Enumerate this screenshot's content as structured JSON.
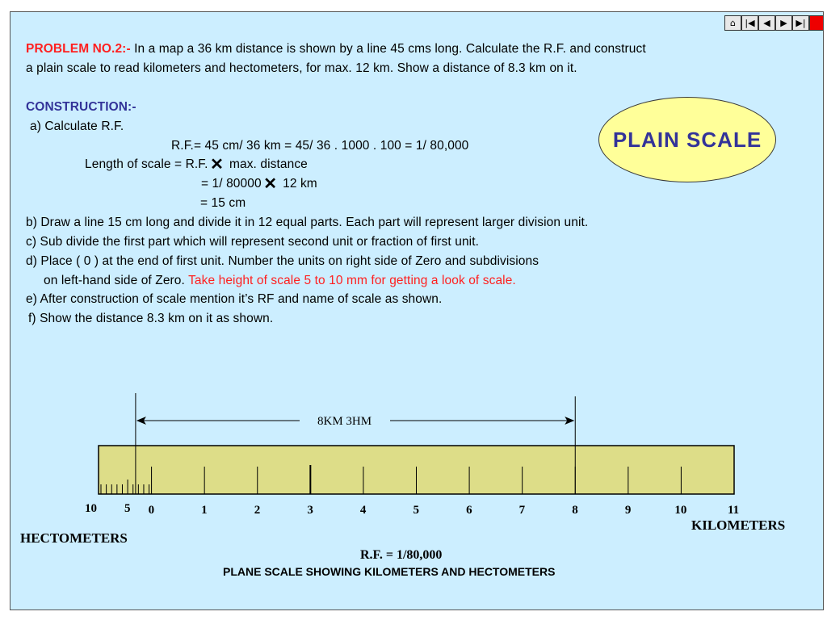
{
  "nav": {
    "buttons": [
      {
        "icon": "home-icon",
        "glyph": "⌂"
      },
      {
        "icon": "first-icon",
        "glyph": "|◀"
      },
      {
        "icon": "prev-icon",
        "glyph": "◀"
      },
      {
        "icon": "next-icon",
        "glyph": "▶"
      },
      {
        "icon": "last-icon",
        "glyph": "▶|"
      },
      {
        "icon": "stop-icon",
        "glyph": ""
      }
    ]
  },
  "problem": {
    "label": "PROBLEM NO.2:-",
    "line1": " In a map a 36 km distance is shown by a line 45 cms long. Calculate the R.F. and construct",
    "line2": "a plain scale to read kilometers and hectometers, for max. 12 km. Show a distance of 8.3 km on it."
  },
  "construction": {
    "heading": "CONSTRUCTION:-",
    "a": "a) Calculate R.F.",
    "rf_calc": "R.F.= 45 cm/ 36 km = 45/ 36 . 1000 . 100 = 1/ 80,000",
    "len_pre": "Length of scale = R.F.",
    "len_post": " max. distance",
    "eq1_pre": "= 1/ 80000",
    "eq1_post": " 12 km",
    "eq2": "= 15 cm",
    "b": "b) Draw a line 15 cm long and divide it in 12 equal parts. Each part will represent larger division unit.",
    "c": "c) Sub divide the first part which will represent second unit or fraction of first unit.",
    "d1": "d) Place ( 0 ) at the end of first unit. Number the units on right side of Zero and subdivisions",
    "d2_pre": "on left-hand side of Zero. ",
    "d2_red": "Take height of scale 5 to 10 mm for getting a look of scale.",
    "e": "e) After construction of scale mention it’s RF and name of scale as shown.",
    "f": "f) Show the distance 8.3 km on it as shown."
  },
  "badge": {
    "title": "PLAIN SCALE"
  },
  "scale": {
    "measure_label": "8KM  3HM",
    "hecto_labels": [
      "10",
      "5"
    ],
    "km_labels": [
      "0",
      "1",
      "2",
      "3",
      "4",
      "5",
      "6",
      "7",
      "8",
      "9",
      "10",
      "11"
    ],
    "hectometers_label": "HECTOMETERS",
    "kilometers_label": "KILOMETERS",
    "rf_label": "R.F. = 1/80,000",
    "caption": "PLANE SCALE SHOWING KILOMETERS AND HECTOMETERS",
    "distance_km": 8.3,
    "colors": {
      "bar": "#dddd88",
      "bar_stroke": "#000000"
    }
  }
}
